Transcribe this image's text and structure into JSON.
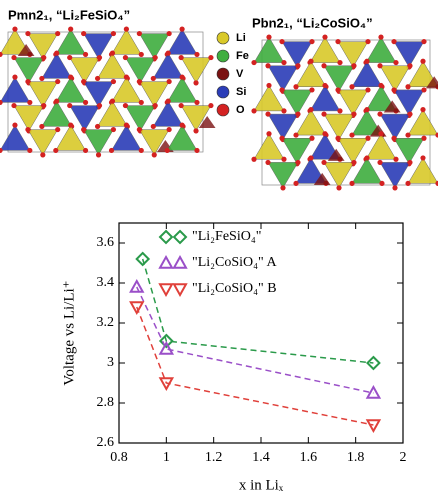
{
  "structures": {
    "panels": [
      {
        "label": "Pmn2₁, “Li₂FeSiO₄”"
      },
      {
        "label": "Pbn2₁, “Li₂CoSiO₄”"
      }
    ],
    "legend": [
      {
        "name": "Li",
        "color": "#d9c92a"
      },
      {
        "name": "Fe",
        "color": "#3fae3f"
      },
      {
        "name": "V",
        "color": "#7a1212"
      },
      {
        "name": "Si",
        "color": "#2b3db8"
      },
      {
        "name": "O",
        "color": "#d42222"
      }
    ]
  },
  "chart_data": {
    "type": "line",
    "xlabel": "x in Liₓ",
    "ylabel": "Voltage vs Li/Li⁺",
    "xlim": [
      0.8,
      2
    ],
    "xticks": [
      0.8,
      1,
      1.2,
      1.4,
      1.6,
      1.8,
      2
    ],
    "ylim": [
      2.6,
      3.7
    ],
    "yticks": [
      2.6,
      2.8,
      3,
      3.2,
      3.4,
      3.6
    ],
    "series": [
      {
        "name": "\"Li₂FeSiO₄\"",
        "color": "#2a9a4a",
        "marker": "diamond",
        "x": [
          0.9,
          1,
          1.875
        ],
        "values": [
          3.52,
          3.11,
          3.0
        ]
      },
      {
        "name": "\"Li₂CoSiO₄\" A",
        "color": "#9a4fc8",
        "marker": "triangle-up",
        "x": [
          0.875,
          1,
          1.875
        ],
        "values": [
          3.38,
          3.07,
          2.85
        ]
      },
      {
        "name": "\"Li₂CoSiO₄\" B",
        "color": "#e0403a",
        "marker": "triangle-down",
        "x": [
          0.875,
          1,
          1.875
        ],
        "values": [
          3.28,
          2.9,
          2.69
        ]
      }
    ]
  }
}
